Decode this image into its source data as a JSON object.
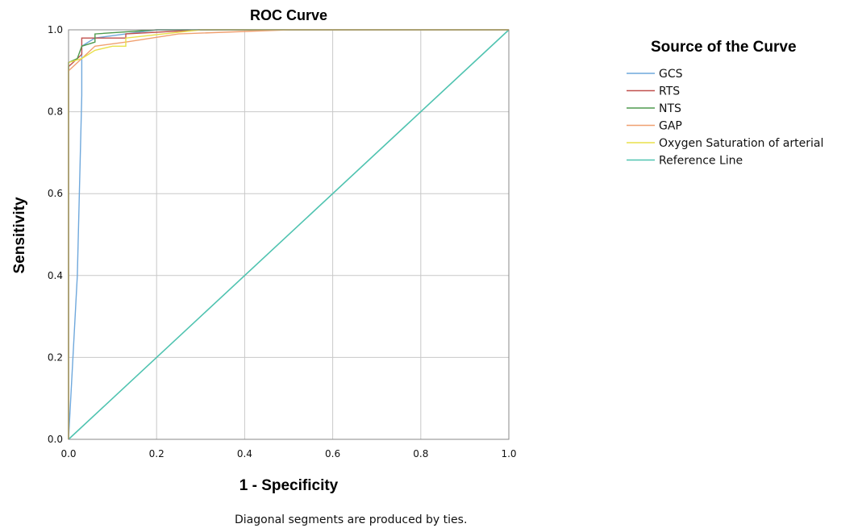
{
  "chart_data": {
    "type": "line",
    "title": "ROC Curve",
    "xlabel": "1 - Specificity",
    "ylabel": "Sensitivity",
    "xlim": [
      0,
      1
    ],
    "ylim": [
      0,
      1
    ],
    "xticks": [
      "0.0",
      "0.2",
      "0.4",
      "0.6",
      "0.8",
      "1.0"
    ],
    "yticks": [
      "0.0",
      "0.2",
      "0.4",
      "0.6",
      "0.8",
      "1.0"
    ],
    "grid": true,
    "legend_title": "Source of the Curve",
    "legend_position": "right",
    "note": "Diagonal segments are produced by ties.",
    "series": [
      {
        "name": "GCS",
        "color": "#6fa8dc",
        "points": [
          [
            0,
            0
          ],
          [
            0.02,
            0.4
          ],
          [
            0.03,
            0.84
          ],
          [
            0.03,
            0.96
          ],
          [
            0.06,
            0.98
          ],
          [
            0.13,
            0.99
          ],
          [
            0.2,
            1.0
          ],
          [
            1.0,
            1.0
          ]
        ]
      },
      {
        "name": "RTS",
        "color": "#c0504d",
        "points": [
          [
            0,
            0
          ],
          [
            0,
            0.91
          ],
          [
            0.01,
            0.92
          ],
          [
            0.03,
            0.94
          ],
          [
            0.03,
            0.98
          ],
          [
            0.06,
            0.98
          ],
          [
            0.13,
            0.98
          ],
          [
            0.13,
            0.99
          ],
          [
            0.3,
            1.0
          ],
          [
            1.0,
            1.0
          ]
        ]
      },
      {
        "name": "NTS",
        "color": "#4e9a4e",
        "points": [
          [
            0,
            0
          ],
          [
            0,
            0.92
          ],
          [
            0.02,
            0.93
          ],
          [
            0.03,
            0.96
          ],
          [
            0.06,
            0.97
          ],
          [
            0.06,
            0.99
          ],
          [
            0.2,
            1.0
          ],
          [
            1.0,
            1.0
          ]
        ]
      },
      {
        "name": "GAP",
        "color": "#f0a070",
        "points": [
          [
            0,
            0
          ],
          [
            0,
            0.9
          ],
          [
            0.03,
            0.93
          ],
          [
            0.06,
            0.96
          ],
          [
            0.13,
            0.97
          ],
          [
            0.25,
            0.99
          ],
          [
            0.5,
            1.0
          ],
          [
            1.0,
            1.0
          ]
        ]
      },
      {
        "name": "Oxygen Saturation of arterial",
        "color": "#e8e04a",
        "points": [
          [
            0,
            0
          ],
          [
            0,
            0.92
          ],
          [
            0.03,
            0.93
          ],
          [
            0.06,
            0.95
          ],
          [
            0.1,
            0.96
          ],
          [
            0.13,
            0.96
          ],
          [
            0.13,
            0.98
          ],
          [
            0.3,
            1.0
          ],
          [
            1.0,
            1.0
          ]
        ]
      },
      {
        "name": "Reference Line",
        "color": "#4fc3b0",
        "points": [
          [
            0,
            0
          ],
          [
            1,
            1
          ]
        ]
      }
    ]
  }
}
